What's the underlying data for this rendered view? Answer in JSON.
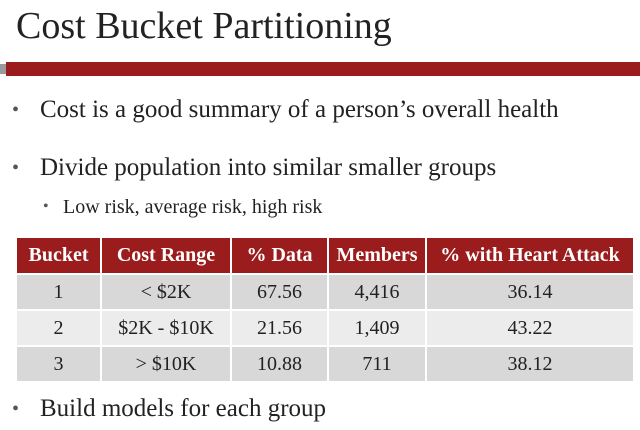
{
  "slide": {
    "title": "Cost Bucket Partitioning",
    "bullets": [
      "Cost is a good summary of a person’s overall health",
      "Divide population into similar smaller groups",
      "Build models for each group"
    ],
    "sub_bullets": [
      "Low risk, average risk, high risk"
    ],
    "bullet_glyph": "•"
  },
  "table": {
    "headers": [
      "Bucket",
      "Cost Range",
      "% Data",
      "Members",
      "% with Heart Attack"
    ],
    "rows": [
      [
        "1",
        "< $2K",
        "67.56",
        "4,416",
        "36.14"
      ],
      [
        "2",
        "$2K - $10K",
        "21.56",
        "1,409",
        "43.22"
      ],
      [
        "3",
        "> $10K",
        "10.88",
        "711",
        "38.12"
      ]
    ]
  },
  "colors": {
    "accent": "#9b1c1c",
    "row_dark": "#d8d8d8",
    "row_light": "#ececec"
  }
}
